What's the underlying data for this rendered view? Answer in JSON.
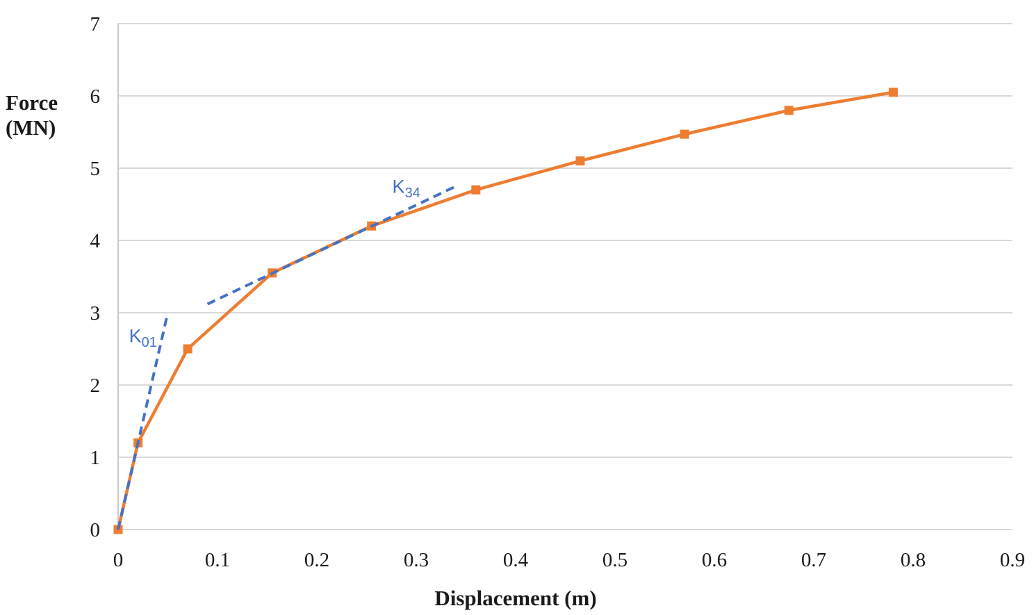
{
  "chart_data": {
    "type": "line",
    "title": "",
    "xlabel": "Displacement (m)",
    "ylabel": "Force\n(MN)",
    "xlim": [
      0,
      0.9
    ],
    "ylim": [
      0,
      7
    ],
    "x_tick_labels": [
      "0",
      "0.1",
      "0.2",
      "0.3",
      "0.4",
      "0.5",
      "0.6",
      "0.7",
      "0.8",
      "0.9"
    ],
    "x_tick_values": [
      0,
      0.1,
      0.2,
      0.3,
      0.4,
      0.5,
      0.6,
      0.7,
      0.8,
      0.9
    ],
    "y_tick_labels": [
      "0",
      "1",
      "2",
      "3",
      "4",
      "5",
      "6",
      "7"
    ],
    "y_tick_values": [
      0,
      1,
      2,
      3,
      4,
      5,
      6,
      7
    ],
    "grid": "horizontal",
    "legend": "none",
    "series": [
      {
        "name": "force-displacement-curve",
        "color": "#ED7D31",
        "line_style": "solid",
        "marker": "square",
        "points": [
          [
            0,
            0
          ],
          [
            0.02,
            1.2
          ],
          [
            0.07,
            2.5
          ],
          [
            0.155,
            3.55
          ],
          [
            0.255,
            4.2
          ],
          [
            0.36,
            4.7
          ],
          [
            0.465,
            5.1
          ],
          [
            0.57,
            5.47
          ],
          [
            0.675,
            5.8
          ],
          [
            0.78,
            6.05
          ]
        ]
      },
      {
        "name": "k01-tangent-line",
        "color": "#4472C4",
        "line_style": "dashed",
        "marker": "none",
        "points": [
          [
            0,
            0
          ],
          [
            0.05,
            3.0
          ]
        ]
      },
      {
        "name": "k34-tangent-line",
        "color": "#4472C4",
        "line_style": "dashed",
        "marker": "none",
        "points": [
          [
            0.09,
            3.12
          ],
          [
            0.34,
            4.75
          ]
        ]
      }
    ],
    "annotations": [
      {
        "id": "k01-label",
        "text": "K",
        "sub": "01",
        "x": 0.025,
        "y": 2.67,
        "color": "#4472C4"
      },
      {
        "id": "k34-label",
        "text": "K",
        "sub": "34",
        "x": 0.29,
        "y": 4.74,
        "color": "#4472C4"
      }
    ],
    "colors": {
      "gridline": "#D9D9D9",
      "axis_line": "#C9C9C9",
      "tick_text": "#1a1a1a"
    }
  }
}
